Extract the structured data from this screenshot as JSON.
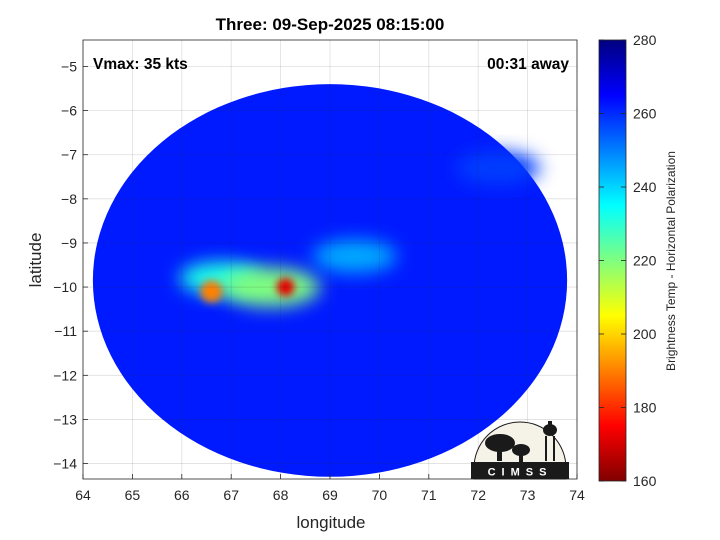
{
  "chart_data": {
    "type": "heatmap",
    "title": "Three: 09-Sep-2025 08:15:00",
    "xlabel": "longitude",
    "ylabel": "latitude",
    "xlim": [
      64,
      74
    ],
    "ylim": [
      -14.35,
      -4.4
    ],
    "x_ticks": [
      64,
      65,
      66,
      67,
      68,
      69,
      70,
      71,
      72,
      73,
      74
    ],
    "y_ticks": [
      -5,
      -6,
      -7,
      -8,
      -9,
      -10,
      -11,
      -12,
      -13,
      -14
    ],
    "grid": true,
    "annotations": {
      "top_left": "Vmax: 35 kts",
      "top_right": "00:31 away"
    },
    "colorbar": {
      "label": "Brightness Temp - Horizontal Polarization",
      "range": [
        160,
        280
      ],
      "ticks": [
        280,
        260,
        240,
        220,
        200,
        180,
        160
      ],
      "colormap": "jet"
    },
    "swath": {
      "center_lon": 69.0,
      "center_lat": -9.85,
      "radius_lon": 4.8,
      "radius_lat": 4.45,
      "background_value": 262
    },
    "features": [
      {
        "lon": 66.8,
        "lat": -9.8,
        "value": 232
      },
      {
        "lon": 67.8,
        "lat": -10.0,
        "value": 220
      },
      {
        "lon": 66.6,
        "lat": -10.1,
        "value": 190
      },
      {
        "lon": 68.1,
        "lat": -10.0,
        "value": 172
      },
      {
        "lon": 69.5,
        "lat": -9.3,
        "value": 245
      },
      {
        "lon": 72.4,
        "lat": -7.3,
        "value": 258
      }
    ],
    "logo_text": "CIMSS"
  }
}
